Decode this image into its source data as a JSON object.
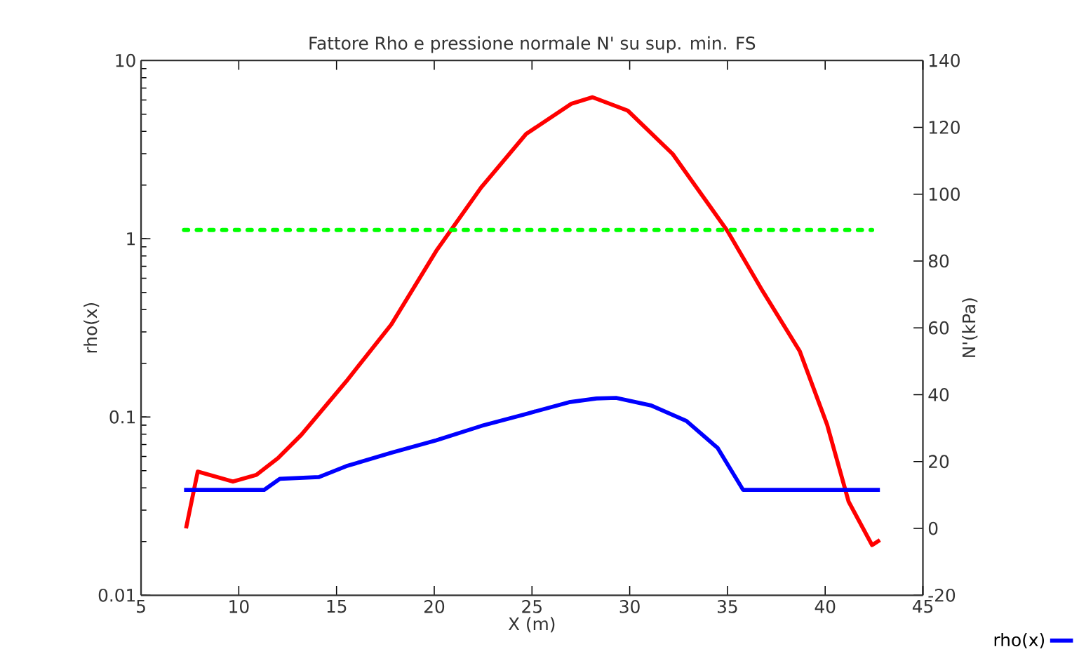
{
  "chart_data": {
    "type": "line",
    "title": "Fattore Rho e pressione normale N' su sup. min. FS",
    "xlabel": "X (m)",
    "ylabel": "rho(x)",
    "y2label": "N'(kPa)",
    "xlim": [
      5,
      45
    ],
    "xticks": [
      5,
      10,
      15,
      20,
      25,
      30,
      35,
      40,
      45
    ],
    "ylim": [
      0.01,
      10
    ],
    "yticks": [
      0.01,
      0.1,
      1,
      10
    ],
    "y2lim": [
      -20,
      140
    ],
    "y2ticks": [
      -20,
      0,
      20,
      40,
      60,
      80,
      100,
      120,
      140
    ],
    "log": "y",
    "legend": "bottom right",
    "line_style": "solid",
    "marker": "none",
    "series": [
      {
        "name": "rho(x)",
        "color": "#0000ff",
        "x": [
          7.2,
          11.3,
          12.1,
          14.1,
          15.5,
          17.8,
          20.1,
          22.4,
          24.7,
          26.9,
          28.3,
          29.3,
          31.1,
          32.9,
          34.5,
          35.8,
          42.8
        ],
        "values": [
          0.039,
          0.039,
          0.045,
          0.046,
          0.053,
          0.063,
          0.074,
          0.089,
          0.104,
          0.121,
          0.127,
          0.128,
          0.116,
          0.095,
          0.067,
          0.039,
          0.039
        ]
      },
      {
        "color": "#ff0000",
        "axis": "y2",
        "x": [
          7.3,
          7.9,
          9.7,
          10.9,
          12.0,
          13.2,
          15.5,
          17.8,
          20.1,
          22.4,
          24.7,
          27.0,
          28.1,
          29.9,
          32.2,
          35.0,
          36.8,
          38.7,
          40.1,
          41.2,
          42.4,
          42.8
        ],
        "values": [
          0,
          17,
          14,
          16,
          21,
          28,
          44,
          61,
          83,
          102,
          118,
          127,
          129,
          125,
          112,
          89,
          71,
          53,
          31,
          8,
          -5,
          -3.5
        ]
      },
      {
        "color": "#00ff00",
        "line_style": "dotted",
        "x": [
          7.2,
          42.4
        ],
        "values": [
          1.12,
          1.12
        ]
      }
    ]
  }
}
